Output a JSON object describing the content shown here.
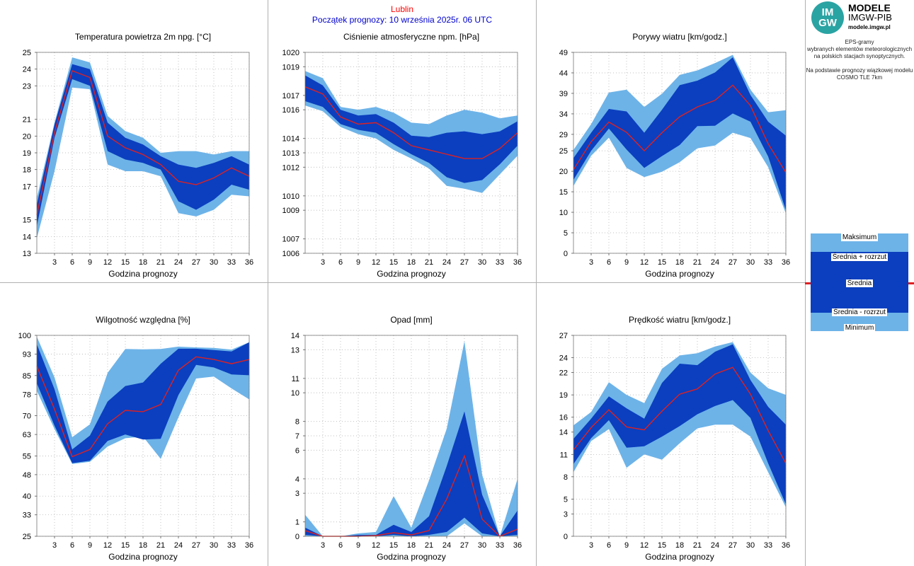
{
  "header": {
    "city": "Lublin",
    "forecast_start": "Początek prognozy: 10 września 2025r. 06 UTC"
  },
  "logo": {
    "mark_top": "IM",
    "mark_bottom": "GW",
    "line1": "MODELE",
    "line2": "IMGW-PIB",
    "line3": "modele.imgw.pl"
  },
  "info": {
    "lines": [
      "EPS-gramy",
      "wybranych elementów meteorologicznych",
      "na polskich stacjach  synoptycznych.",
      "",
      "Na podstawie prognozy wiązkowej modelu",
      "COSMO TLE 7km"
    ]
  },
  "legend": {
    "max": "Maksimum",
    "mean_plus": "Średnia + rozrzut",
    "mean": "Średnia",
    "mean_minus": "Średnia - rozrzut",
    "min": "Minimum"
  },
  "colors": {
    "outer_band": "#6db3e8",
    "inner_band": "#0b3fbf",
    "mean_line": "#e02020",
    "grid": "#aaaaaa"
  },
  "chart_data": [
    {
      "id": "temp",
      "type": "area",
      "title": "Temperatura powietrza 2m npg. [°C]",
      "xlabel": "Godzina prognozy",
      "x": [
        0,
        3,
        6,
        9,
        12,
        15,
        18,
        21,
        24,
        27,
        30,
        33,
        36
      ],
      "xticks": [
        3,
        6,
        9,
        12,
        15,
        18,
        21,
        24,
        27,
        30,
        33,
        36
      ],
      "ylim": [
        13,
        25
      ],
      "yticks": [
        13,
        14,
        15,
        17,
        18,
        19,
        20,
        21,
        23,
        24,
        25
      ],
      "series": {
        "min": [
          13.9,
          17.9,
          22.9,
          22.8,
          18.3,
          17.9,
          17.9,
          17.6,
          15.4,
          15.2,
          15.6,
          16.5,
          16.4
        ],
        "lower": [
          14.6,
          19.9,
          23.4,
          23.0,
          19.1,
          18.6,
          18.4,
          18.0,
          16.1,
          15.6,
          16.2,
          17.1,
          16.8
        ],
        "mean": [
          15.3,
          20.2,
          23.9,
          23.5,
          20.0,
          19.3,
          18.9,
          18.3,
          17.3,
          17.1,
          17.5,
          18.1,
          17.6
        ],
        "upper": [
          15.9,
          20.7,
          24.3,
          24.0,
          20.8,
          19.9,
          19.5,
          18.8,
          18.3,
          18.1,
          18.4,
          18.8,
          18.3
        ],
        "max": [
          16.3,
          20.8,
          24.7,
          24.4,
          21.2,
          20.3,
          19.9,
          19.0,
          19.1,
          19.1,
          18.9,
          19.1,
          19.1
        ]
      }
    },
    {
      "id": "pressure",
      "type": "area",
      "title": "Ciśnienie atmosferyczne npm. [hPa]",
      "xlabel": "Godzina prognozy",
      "x": [
        0,
        3,
        6,
        9,
        12,
        15,
        18,
        21,
        24,
        27,
        30,
        33,
        36
      ],
      "xticks": [
        3,
        6,
        9,
        12,
        15,
        18,
        21,
        24,
        27,
        30,
        33,
        36
      ],
      "ylim": [
        1006,
        1020
      ],
      "yticks": [
        1006,
        1007,
        1009,
        1010,
        1012,
        1013,
        1014,
        1016,
        1017,
        1019,
        1020
      ],
      "series": {
        "min": [
          1016.3,
          1015.9,
          1014.8,
          1014.3,
          1014.0,
          1013.2,
          1012.6,
          1011.9,
          1010.7,
          1010.5,
          1010.2,
          1011.5,
          1012.8
        ],
        "lower": [
          1016.6,
          1016.2,
          1015.0,
          1014.6,
          1014.4,
          1013.6,
          1012.9,
          1012.3,
          1011.3,
          1010.9,
          1011.1,
          1012.2,
          1013.5
        ],
        "mean": [
          1017.6,
          1017.1,
          1015.5,
          1015.0,
          1015.1,
          1014.4,
          1013.5,
          1013.2,
          1012.9,
          1012.6,
          1012.6,
          1013.3,
          1014.4
        ],
        "upper": [
          1018.4,
          1017.7,
          1016.0,
          1015.6,
          1015.7,
          1015.1,
          1014.2,
          1014.1,
          1014.4,
          1014.5,
          1014.3,
          1014.5,
          1015.2
        ],
        "max": [
          1018.7,
          1018.2,
          1016.2,
          1016.0,
          1016.2,
          1015.8,
          1015.1,
          1015.0,
          1015.6,
          1016.0,
          1015.8,
          1015.4,
          1015.6
        ]
      }
    },
    {
      "id": "gusts",
      "type": "area",
      "title": "Porywy wiatru [km/godz.]",
      "xlabel": "Godzina prognozy",
      "x": [
        0,
        3,
        6,
        9,
        12,
        15,
        18,
        21,
        24,
        27,
        30,
        33,
        36
      ],
      "xticks": [
        3,
        6,
        9,
        12,
        15,
        18,
        21,
        24,
        27,
        30,
        33,
        36
      ],
      "ylim": [
        0,
        49
      ],
      "yticks": [
        0,
        5,
        10,
        15,
        20,
        25,
        29,
        34,
        39,
        44,
        49
      ],
      "series": {
        "min": [
          16.4,
          23.8,
          28.2,
          20.8,
          18.6,
          19.9,
          22.2,
          25.6,
          26.3,
          29.4,
          28.1,
          21.0,
          9.7
        ],
        "lower": [
          17.9,
          25.0,
          30.4,
          25.3,
          20.8,
          23.7,
          26.4,
          31.0,
          31.1,
          34.1,
          32.1,
          23.6,
          10.5
        ],
        "mean": [
          20.4,
          27.2,
          32.0,
          29.5,
          25.0,
          29.4,
          33.3,
          35.7,
          37.3,
          41.0,
          36.0,
          26.7,
          19.7
        ],
        "upper": [
          23.2,
          29.4,
          35.2,
          34.6,
          29.4,
          35.0,
          41.0,
          42.1,
          44.1,
          47.8,
          38.6,
          32.1,
          28.7
        ],
        "max": [
          25.2,
          31.5,
          39.2,
          39.9,
          35.7,
          38.9,
          43.5,
          44.6,
          46.4,
          48.4,
          39.9,
          34.4,
          34.9
        ]
      }
    },
    {
      "id": "humidity",
      "type": "area",
      "title": "Wilgotność względna [%]",
      "xlabel": "Godzina prognozy",
      "x": [
        0,
        3,
        6,
        9,
        12,
        15,
        18,
        21,
        24,
        27,
        30,
        33,
        36
      ],
      "xticks": [
        3,
        6,
        9,
        12,
        15,
        18,
        21,
        24,
        27,
        30,
        33,
        36
      ],
      "ylim": [
        25,
        100
      ],
      "yticks": [
        25,
        33,
        40,
        48,
        55,
        63,
        70,
        78,
        85,
        93,
        100
      ],
      "series": {
        "min": [
          79.3,
          65.0,
          52.0,
          52.8,
          58.5,
          61.6,
          62.2,
          53.9,
          69.4,
          83.9,
          84.6,
          80.2,
          76.1
        ],
        "lower": [
          82.1,
          66.3,
          52.3,
          53.2,
          60.6,
          63.0,
          61.1,
          61.4,
          77.7,
          89.0,
          88.0,
          85.4,
          85.1
        ],
        "mean": [
          88.5,
          72.4,
          54.7,
          57.4,
          67.0,
          72.0,
          71.5,
          74.2,
          87.0,
          92.0,
          91.0,
          89.4,
          91.0
        ],
        "upper": [
          96.7,
          79.9,
          57.4,
          62.6,
          75.3,
          81.1,
          82.4,
          89.4,
          95.0,
          95.0,
          94.5,
          94.0,
          97.4
        ],
        "max": [
          99.5,
          84.3,
          62.0,
          66.8,
          86.0,
          94.9,
          94.8,
          94.9,
          95.8,
          95.5,
          95.3,
          94.7,
          97.4
        ]
      }
    },
    {
      "id": "precip",
      "type": "area",
      "title": "Opad [mm]",
      "xlabel": "Godzina prognozy",
      "x": [
        0,
        3,
        6,
        9,
        12,
        15,
        18,
        21,
        24,
        27,
        30,
        33,
        36
      ],
      "xticks": [
        3,
        6,
        9,
        12,
        15,
        18,
        21,
        24,
        27,
        30,
        33,
        36
      ],
      "ylim": [
        0,
        14
      ],
      "yticks": [
        0,
        1,
        3,
        4,
        6,
        7,
        8,
        10,
        11,
        13,
        14
      ],
      "series": {
        "min": [
          0.0,
          0.0,
          0.0,
          0.0,
          0.0,
          0.0,
          0.0,
          0.0,
          0.0,
          0.9,
          0.0,
          0.0,
          0.0
        ],
        "lower": [
          0.1,
          0.0,
          0.0,
          0.0,
          0.0,
          0.1,
          0.0,
          0.1,
          0.3,
          1.3,
          0.2,
          0.0,
          0.1
        ],
        "mean": [
          0.4,
          0.0,
          0.0,
          0.0,
          0.05,
          0.25,
          0.1,
          0.4,
          2.6,
          5.6,
          1.2,
          0.0,
          0.5
        ],
        "upper": [
          0.6,
          0.0,
          0.0,
          0.1,
          0.1,
          0.8,
          0.3,
          1.4,
          4.9,
          8.7,
          2.9,
          0.0,
          1.8
        ],
        "max": [
          1.5,
          0.0,
          0.0,
          0.2,
          0.3,
          2.8,
          0.6,
          3.9,
          7.5,
          13.6,
          4.3,
          0.0,
          4.0
        ]
      }
    },
    {
      "id": "wind",
      "type": "area",
      "title": "Prędkość wiatru [km/godz.]",
      "xlabel": "Godzina prognozy",
      "x": [
        0,
        3,
        6,
        9,
        12,
        15,
        18,
        21,
        24,
        27,
        30,
        33,
        36
      ],
      "xticks": [
        3,
        6,
        9,
        12,
        15,
        18,
        21,
        24,
        27,
        30,
        33,
        36
      ],
      "ylim": [
        0,
        27
      ],
      "yticks": [
        0,
        3,
        5,
        8,
        11,
        14,
        16,
        19,
        22,
        24,
        27
      ],
      "series": {
        "min": [
          8.6,
          12.8,
          14.4,
          9.2,
          11.0,
          10.3,
          12.5,
          14.5,
          15.0,
          15.0,
          13.4,
          8.6,
          3.9
        ],
        "lower": [
          9.7,
          13.2,
          15.6,
          11.9,
          12.1,
          13.4,
          14.8,
          16.4,
          17.5,
          18.3,
          15.9,
          9.8,
          4.3
        ],
        "mean": [
          11.6,
          14.6,
          17.0,
          14.7,
          14.3,
          16.8,
          19.1,
          19.8,
          21.8,
          22.7,
          19.1,
          14.2,
          9.8
        ],
        "upper": [
          13.1,
          15.8,
          18.8,
          17.2,
          15.8,
          20.6,
          23.2,
          23.0,
          24.8,
          25.8,
          21.0,
          17.4,
          15.0
        ],
        "max": [
          14.9,
          16.7,
          20.7,
          19.0,
          17.9,
          22.5,
          24.3,
          24.6,
          25.5,
          26.1,
          22.0,
          19.9,
          19.0
        ]
      }
    }
  ]
}
